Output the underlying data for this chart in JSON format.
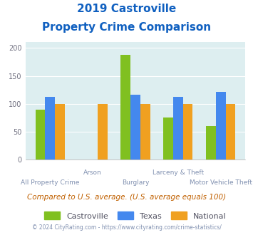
{
  "title_line1": "2019 Castroville",
  "title_line2": "Property Crime Comparison",
  "categories": [
    "All Property Crime",
    "Arson",
    "Burglary",
    "Larceny & Theft",
    "Motor Vehicle Theft"
  ],
  "castroville": [
    90,
    0,
    188,
    75,
    60
  ],
  "texas": [
    113,
    0,
    116,
    113,
    122
  ],
  "national": [
    100,
    100,
    100,
    100,
    100
  ],
  "castroville_color": "#80c020",
  "texas_color": "#4488ee",
  "national_color": "#f0a020",
  "bg_color": "#ddeef0",
  "title_color": "#1060c0",
  "xlabel_color": "#8090b0",
  "ylabel_color": "#707080",
  "ylim": [
    0,
    210
  ],
  "yticks": [
    0,
    50,
    100,
    150,
    200
  ],
  "subtitle_text": "Compared to U.S. average. (U.S. average equals 100)",
  "subtitle_color": "#c06000",
  "footer_text": "© 2024 CityRating.com - https://www.cityrating.com/crime-statistics/",
  "footer_color": "#8090b0",
  "legend_labels": [
    "Castroville",
    "Texas",
    "National"
  ]
}
